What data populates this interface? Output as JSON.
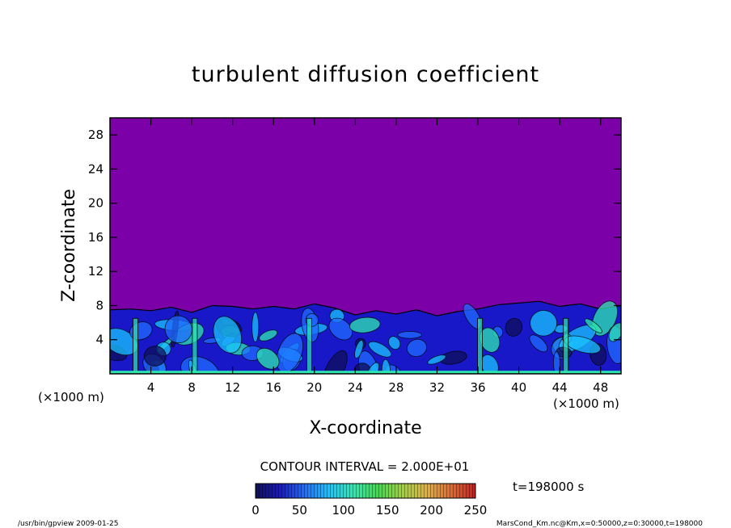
{
  "chart_data": {
    "type": "heatmap",
    "title": "turbulent diffusion coefficient",
    "xlabel": "X-coordinate",
    "ylabel": "Z-coordinate",
    "x_unit": "(×1000 m)",
    "y_unit": "(×1000 m)",
    "xlim": [
      0,
      50
    ],
    "ylim": [
      0,
      30
    ],
    "x_ticks": [
      "4",
      "8",
      "12",
      "16",
      "20",
      "24",
      "28",
      "32",
      "36",
      "40",
      "44",
      "48"
    ],
    "x_tick_values": [
      4,
      8,
      12,
      16,
      20,
      24,
      28,
      32,
      36,
      40,
      44,
      48
    ],
    "y_ticks": [
      "4",
      "8",
      "12",
      "16",
      "20",
      "24",
      "28"
    ],
    "y_tick_values": [
      4,
      8,
      12,
      16,
      20,
      24,
      28
    ],
    "contour_interval_label": "CONTOUR INTERVAL = 2.000E+01",
    "colorbar": {
      "min": 0,
      "max": 250,
      "ticks": [
        "0",
        "50",
        "100",
        "150",
        "200",
        "250"
      ],
      "tick_values": [
        0,
        50,
        100,
        150,
        200,
        250
      ]
    },
    "time_label": "t=198000 s",
    "boundary_layer_top_km": [
      7.5,
      7.6,
      7.4,
      7.8,
      7.2,
      8.0,
      7.9,
      7.6,
      7.9,
      7.6,
      8.2,
      7.7,
      6.9,
      7.4,
      7.0,
      7.5,
      6.8,
      7.3,
      7.6,
      8.1,
      8.3,
      8.5,
      7.9,
      8.2,
      7.6,
      8.0
    ],
    "background_color": "#7c00a8",
    "colormap": [
      "#0f0f5a",
      "#1818c8",
      "#1f6bff",
      "#19c3ff",
      "#2ee8b0",
      "#3ddc4a",
      "#a0d23c",
      "#e0b040",
      "#e06a30",
      "#c81e1e"
    ]
  },
  "footer": {
    "left": "/usr/bin/gpview  2009-01-25",
    "right": "MarsCond_Km.nc@Km,x=0:50000,z=0:30000,t=198000"
  }
}
